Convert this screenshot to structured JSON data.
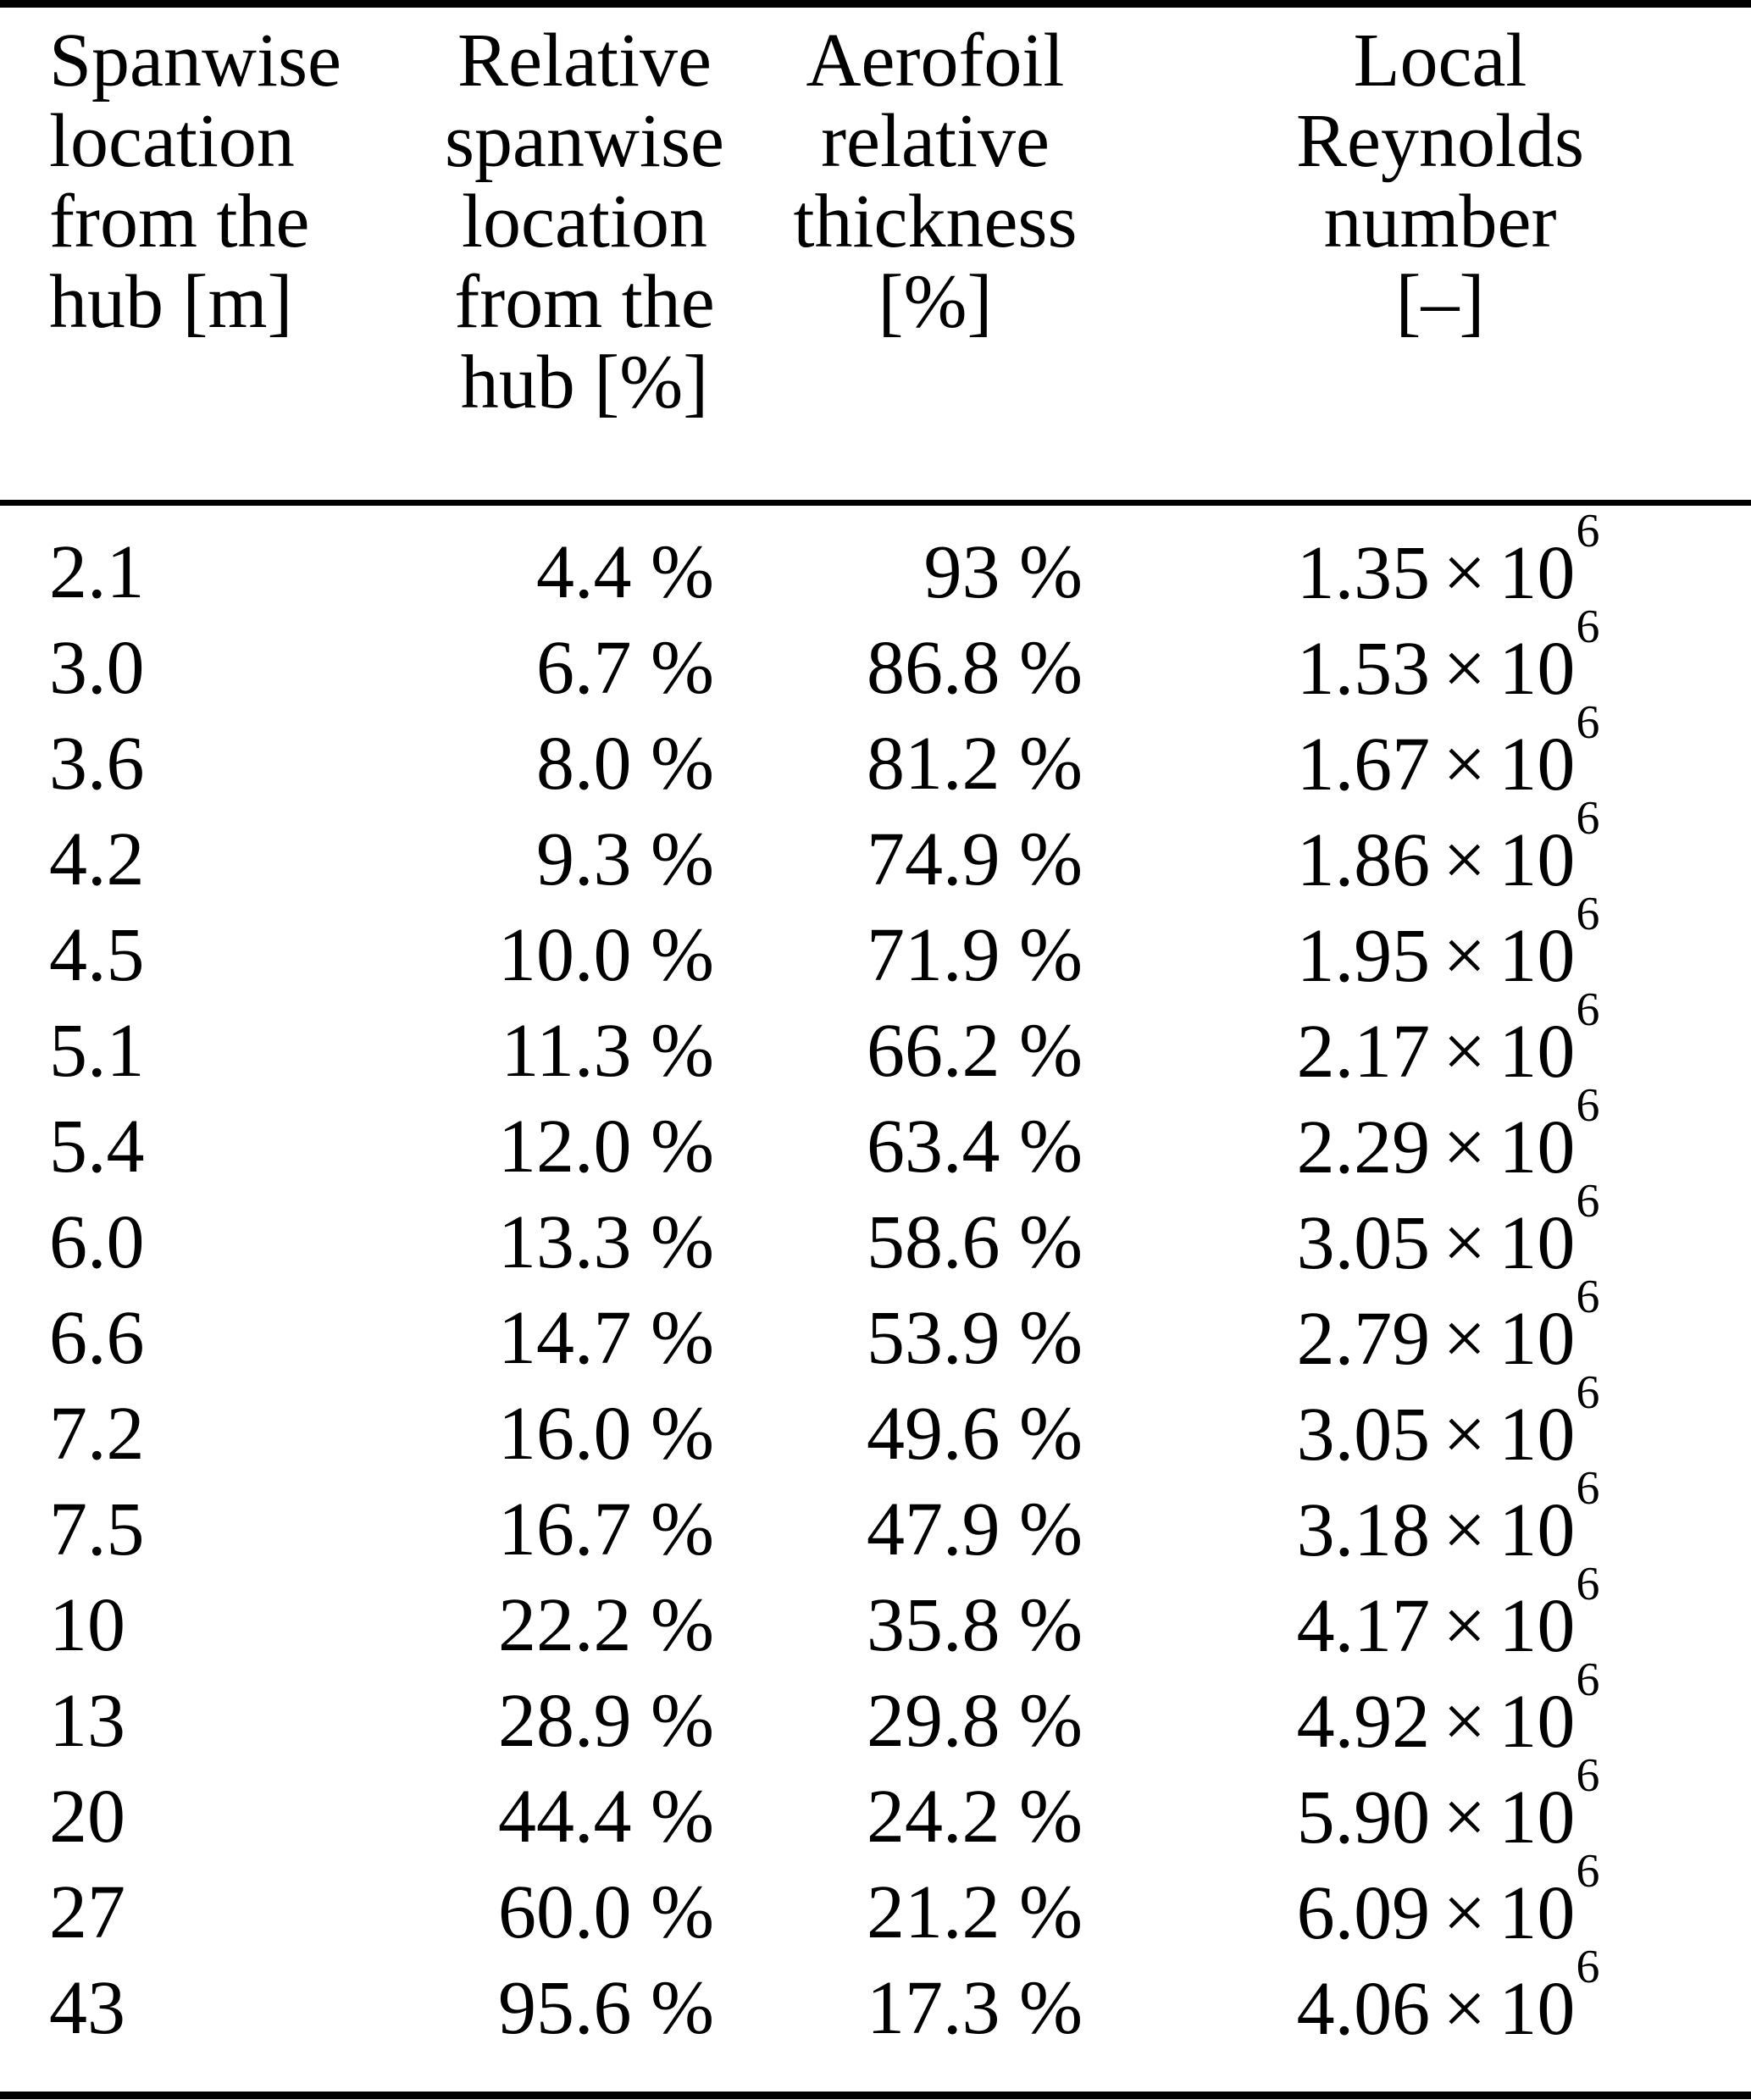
{
  "table": {
    "colors": {
      "text": "#000000",
      "background": "#ffffff",
      "rules": "#000000"
    },
    "columns": [
      {
        "header_lines": [
          "Spanwise",
          "location",
          "from the",
          "hub [m]"
        ]
      },
      {
        "header_lines": [
          "Relative",
          "spanwise",
          "location",
          "from the",
          "hub [%]"
        ]
      },
      {
        "header_lines": [
          "Aerofoil",
          "relative",
          "thickness",
          "[%]"
        ]
      },
      {
        "header_lines": [
          "Local",
          "Reynolds number",
          "[–]"
        ]
      }
    ],
    "reynolds_format": {
      "times_symbol": "×",
      "base": "10"
    },
    "rows": [
      {
        "span_m": "2.1",
        "rel_span": "4.4 %",
        "thickness": "93 %",
        "re_mantissa": "1.35",
        "re_exponent": "6"
      },
      {
        "span_m": "3.0",
        "rel_span": "6.7 %",
        "thickness": "86.8 %",
        "re_mantissa": "1.53",
        "re_exponent": "6"
      },
      {
        "span_m": "3.6",
        "rel_span": "8.0 %",
        "thickness": "81.2 %",
        "re_mantissa": "1.67",
        "re_exponent": "6"
      },
      {
        "span_m": "4.2",
        "rel_span": "9.3 %",
        "thickness": "74.9 %",
        "re_mantissa": "1.86",
        "re_exponent": "6"
      },
      {
        "span_m": "4.5",
        "rel_span": "10.0 %",
        "thickness": "71.9 %",
        "re_mantissa": "1.95",
        "re_exponent": "6"
      },
      {
        "span_m": "5.1",
        "rel_span": "11.3 %",
        "thickness": "66.2 %",
        "re_mantissa": "2.17",
        "re_exponent": "6"
      },
      {
        "span_m": "5.4",
        "rel_span": "12.0 %",
        "thickness": "63.4 %",
        "re_mantissa": "2.29",
        "re_exponent": "6"
      },
      {
        "span_m": "6.0",
        "rel_span": "13.3 %",
        "thickness": "58.6 %",
        "re_mantissa": "3.05",
        "re_exponent": "6"
      },
      {
        "span_m": "6.6",
        "rel_span": "14.7 %",
        "thickness": "53.9 %",
        "re_mantissa": "2.79",
        "re_exponent": "6"
      },
      {
        "span_m": "7.2",
        "rel_span": "16.0 %",
        "thickness": "49.6 %",
        "re_mantissa": "3.05",
        "re_exponent": "6"
      },
      {
        "span_m": "7.5",
        "rel_span": "16.7 %",
        "thickness": "47.9 %",
        "re_mantissa": "3.18",
        "re_exponent": "6"
      },
      {
        "span_m": "10",
        "rel_span": "22.2 %",
        "thickness": "35.8 %",
        "re_mantissa": "4.17",
        "re_exponent": "6"
      },
      {
        "span_m": "13",
        "rel_span": "28.9 %",
        "thickness": "29.8 %",
        "re_mantissa": "4.92",
        "re_exponent": "6"
      },
      {
        "span_m": "20",
        "rel_span": "44.4 %",
        "thickness": "24.2 %",
        "re_mantissa": "5.90",
        "re_exponent": "6"
      },
      {
        "span_m": "27",
        "rel_span": "60.0 %",
        "thickness": "21.2 %",
        "re_mantissa": "6.09",
        "re_exponent": "6"
      },
      {
        "span_m": "43",
        "rel_span": "95.6 %",
        "thickness": "17.3 %",
        "re_mantissa": "4.06",
        "re_exponent": "6"
      }
    ]
  }
}
